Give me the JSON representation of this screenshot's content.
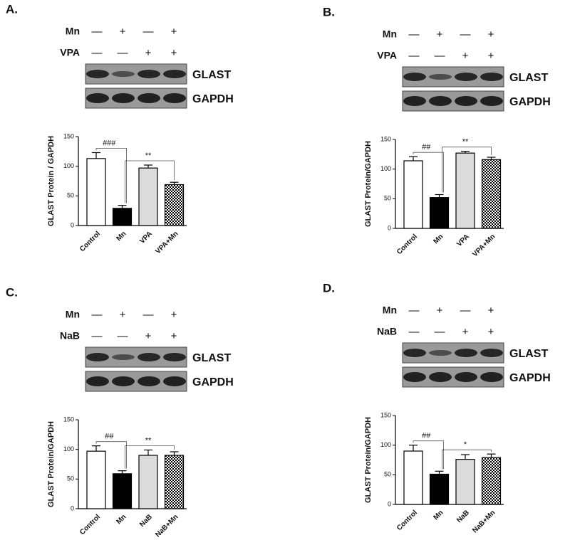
{
  "chart_data": [
    {
      "type": "bar",
      "panel": "A.",
      "blot": {
        "rows": [
          {
            "label": "Mn",
            "signs": [
              "—",
              "+",
              "—",
              "+"
            ]
          },
          {
            "label": "VPA",
            "signs": [
              "—",
              "—",
              "+",
              "+"
            ]
          }
        ],
        "bands": [
          "GLAST",
          "GAPDH"
        ]
      },
      "y_label": "GLAST Protein / GAPDH",
      "categories": [
        "Control",
        "Mn",
        "VPA",
        "VPA+Mn"
      ],
      "values": [
        113,
        29,
        97,
        69
      ],
      "errors": [
        10,
        5,
        5,
        4
      ],
      "colors": [
        "#ffffff",
        "#000000",
        "#dcdcdc",
        "checker"
      ],
      "annotations": [
        "###",
        "**"
      ],
      "ylim": [
        0,
        150
      ],
      "yticks": [
        0,
        50,
        100,
        150
      ]
    },
    {
      "type": "bar",
      "panel": "B.",
      "blot": {
        "rows": [
          {
            "label": "Mn",
            "signs": [
              "—",
              "+",
              "—",
              "+"
            ]
          },
          {
            "label": "VPA",
            "signs": [
              "—",
              "—",
              "+",
              "+"
            ]
          }
        ],
        "bands": [
          "GLAST",
          "GAPDH"
        ]
      },
      "y_label": "GLAST Protein/GAPDH",
      "categories": [
        "Control",
        "Mn",
        "VPA",
        "VPA+Mn"
      ],
      "values": [
        114,
        52,
        127,
        116
      ],
      "errors": [
        7,
        5,
        3,
        4
      ],
      "colors": [
        "#ffffff",
        "#000000",
        "#dcdcdc",
        "checker"
      ],
      "annotations": [
        "##",
        "**"
      ],
      "ylim": [
        0,
        150
      ],
      "yticks": [
        0,
        50,
        100,
        150
      ]
    },
    {
      "type": "bar",
      "panel": "C.",
      "blot": {
        "rows": [
          {
            "label": "Mn",
            "signs": [
              "—",
              "+",
              "—",
              "+"
            ]
          },
          {
            "label": "NaB",
            "signs": [
              "—",
              "—",
              "+",
              "+"
            ]
          }
        ],
        "bands": [
          "GLAST",
          "GAPDH"
        ]
      },
      "y_label": "GLAST Protein/GAPDH",
      "categories": [
        "Control",
        "Mn",
        "NaB",
        "NaB+Mn"
      ],
      "values": [
        97,
        59,
        90,
        90
      ],
      "errors": [
        9,
        5,
        9,
        6
      ],
      "colors": [
        "#ffffff",
        "#000000",
        "#dcdcdc",
        "checker"
      ],
      "annotations": [
        "##",
        "**"
      ],
      "ylim": [
        0,
        150
      ],
      "yticks": [
        0,
        50,
        100,
        150
      ]
    },
    {
      "type": "bar",
      "panel": "D.",
      "blot": {
        "rows": [
          {
            "label": "Mn",
            "signs": [
              "—",
              "+",
              "—",
              "+"
            ]
          },
          {
            "label": "NaB",
            "signs": [
              "—",
              "—",
              "+",
              "+"
            ]
          }
        ],
        "bands": [
          "GLAST",
          "GAPDH"
        ]
      },
      "y_label": "GLAST Protein/GAPDH",
      "categories": [
        "Control",
        "Mn",
        "NaB",
        "NaB+Mn"
      ],
      "values": [
        90,
        51,
        76,
        79
      ],
      "errors": [
        10,
        5,
        8,
        6
      ],
      "colors": [
        "#ffffff",
        "#000000",
        "#dcdcdc",
        "checker"
      ],
      "annotations": [
        "##",
        "*"
      ],
      "ylim": [
        0,
        150
      ],
      "yticks": [
        0,
        50,
        100,
        150
      ]
    }
  ]
}
